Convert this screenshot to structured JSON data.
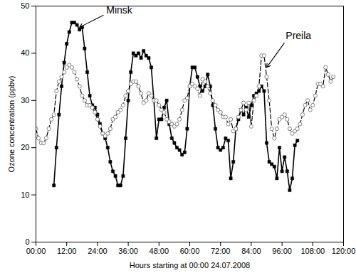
{
  "chart_data": {
    "type": "line",
    "x_label": "Hours starting at 00:00 24.07.2008",
    "y_label": "Ozone concentration (ppbv)",
    "x": [
      0,
      1,
      2,
      3,
      4,
      5,
      6,
      7,
      8,
      9,
      10,
      11,
      12,
      13,
      14,
      15,
      16,
      17,
      18,
      19,
      20,
      21,
      22,
      23,
      24,
      25,
      26,
      27,
      28,
      29,
      30,
      31,
      32,
      33,
      34,
      35,
      36,
      37,
      38,
      39,
      40,
      41,
      42,
      43,
      44,
      45,
      46,
      47,
      48,
      49,
      50,
      51,
      52,
      53,
      54,
      55,
      56,
      57,
      58,
      59,
      60,
      61,
      62,
      63,
      64,
      65,
      66,
      67,
      68,
      69,
      70,
      71,
      72,
      73,
      74,
      75,
      76,
      77,
      78,
      79,
      80,
      81,
      82,
      83,
      84,
      85,
      86,
      87,
      88,
      89,
      90,
      91,
      92,
      93,
      94,
      95,
      96,
      97,
      98,
      99,
      100,
      101,
      102,
      103,
      104,
      105,
      106,
      107,
      108,
      109,
      110,
      111,
      112,
      113,
      114,
      115,
      116
    ],
    "series": [
      {
        "name": "Minsk",
        "color": "#000000",
        "marker": "square",
        "line_style": "solid",
        "values": [
          null,
          null,
          null,
          null,
          null,
          null,
          null,
          12,
          20,
          27,
          33,
          38,
          42,
          44.5,
          46.5,
          46.5,
          46,
          45,
          45.5,
          41,
          36,
          31,
          29,
          28.5,
          27,
          25,
          23,
          22,
          20,
          17,
          15,
          14,
          12,
          12,
          14,
          22,
          30,
          36,
          40,
          39.5,
          40,
          39,
          40.5,
          39.5,
          39,
          37,
          30,
          22,
          26,
          26,
          28.5,
          30,
          25,
          22,
          21,
          20,
          19.5,
          18.5,
          19,
          24,
          33,
          37,
          37,
          35,
          33,
          32,
          33,
          35.5,
          33,
          29,
          24,
          20,
          19.5,
          20,
          22,
          21.5,
          13.5,
          17,
          24,
          26,
          28,
          27,
          28.5,
          26.5,
          29,
          31,
          31.5,
          32,
          33,
          32,
          21,
          17,
          16.5,
          16,
          13.5,
          20,
          15,
          18,
          15,
          11,
          13.5,
          20.5,
          21.5,
          null,
          null,
          null,
          null,
          null,
          null,
          null,
          null,
          null,
          null,
          null,
          null,
          null,
          null
        ]
      },
      {
        "name": "Preila",
        "color": "#000000",
        "marker": "circle",
        "line_style": "dashed",
        "values": [
          24,
          22,
          21,
          21,
          22,
          24,
          26,
          27,
          32,
          34,
          35,
          36,
          37,
          37.5,
          37,
          36,
          34.5,
          33,
          31,
          30,
          29,
          29,
          28.5,
          27.5,
          26,
          24.5,
          23,
          22.5,
          23,
          24,
          26,
          26.5,
          27.5,
          28,
          29,
          31,
          32,
          33.5,
          34,
          34,
          33,
          31.5,
          29.5,
          30,
          31.5,
          31,
          30,
          30,
          29,
          28,
          27.5,
          26,
          25.5,
          25,
          24.5,
          25,
          26,
          28,
          30,
          30.5,
          33,
          33.5,
          33,
          32.5,
          31,
          34.5,
          34,
          33,
          31.5,
          30,
          29,
          28,
          27.5,
          26.5,
          26.5,
          25,
          26,
          23.5,
          24,
          26.5,
          28,
          29.5,
          28,
          29.5,
          24.5,
          30,
          31,
          33,
          39.5,
          39.5,
          35,
          30,
          24,
          22,
          24,
          26,
          26.5,
          27,
          26,
          24,
          23,
          23.5,
          24,
          25,
          27,
          29,
          30,
          28,
          29,
          31,
          33.5,
          33.5,
          33,
          37,
          35.5,
          34,
          35
        ]
      }
    ],
    "annotations": [
      {
        "text": "Minsk",
        "x": 17,
        "y": 45.5,
        "text_x": 28,
        "text_y": 48.5
      },
      {
        "text": "Preila",
        "x": 90,
        "y": 37,
        "text_x": 98,
        "text_y": 43
      }
    ],
    "xlim": [
      0,
      120
    ],
    "xticks": [
      {
        "value": 0,
        "label": "00:00"
      },
      {
        "value": 12,
        "label": "12:00"
      },
      {
        "value": 24,
        "label": "24:00"
      },
      {
        "value": 36,
        "label": "36:00"
      },
      {
        "value": 48,
        "label": "48:00"
      },
      {
        "value": 60,
        "label": "60:00"
      },
      {
        "value": 72,
        "label": "72:00"
      },
      {
        "value": 84,
        "label": "84:00"
      },
      {
        "value": 96,
        "label": "96:00"
      },
      {
        "value": 108,
        "label": "108:00"
      },
      {
        "value": 120,
        "label": "120:00"
      }
    ],
    "ylim": [
      0,
      50
    ],
    "yticks": [
      0,
      10,
      20,
      30,
      40,
      50
    ],
    "grid": false
  }
}
